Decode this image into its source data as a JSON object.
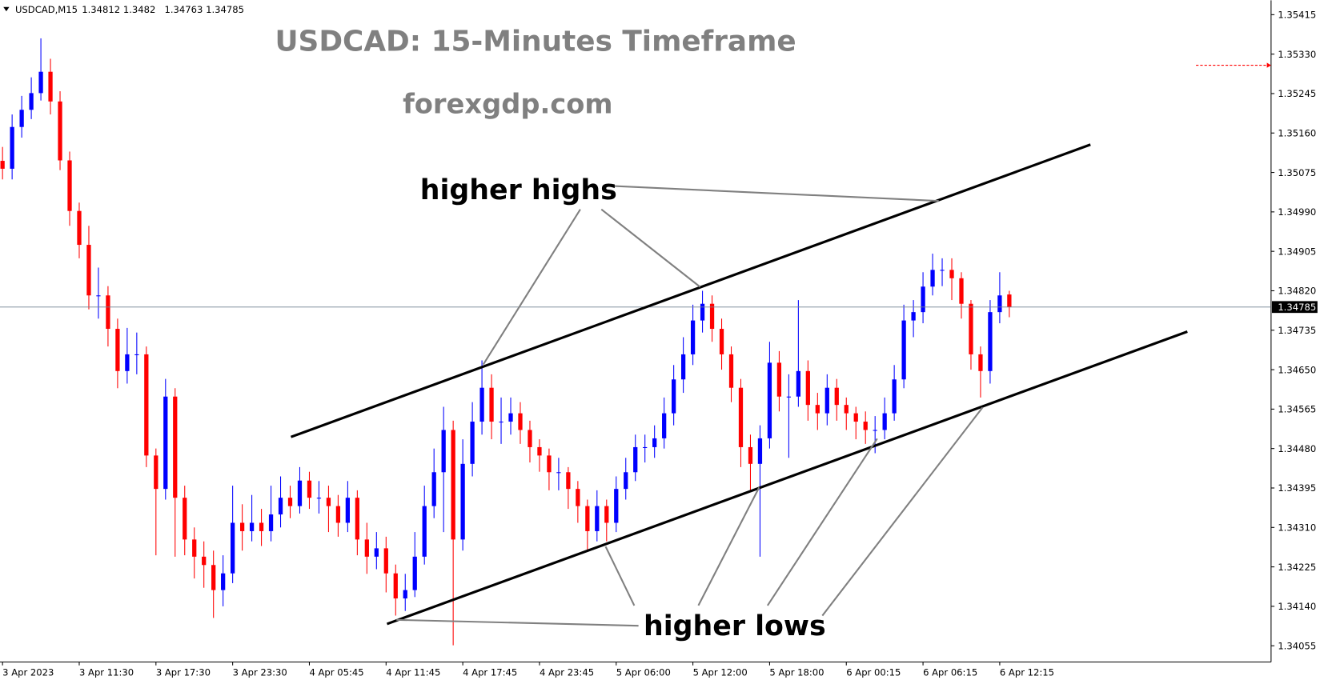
{
  "chart_data": {
    "type": "candlestick",
    "symbol": "USDCAD,M15",
    "title": "USDCAD: 15-Minutes Timeframe",
    "subtitle": "forexgdp.com",
    "annotations": [
      "higher highs",
      "higher lows"
    ],
    "up_color": "#0000ff",
    "down_color": "#ff0000",
    "candles": [
      [
        1.351,
        1.3513,
        1.3506,
        1.35083
      ],
      [
        1.35083,
        1.352,
        1.3506,
        1.35173
      ],
      [
        1.35173,
        1.3524,
        1.3515,
        1.3521
      ],
      [
        1.3521,
        1.3528,
        1.3519,
        1.35246
      ],
      [
        1.35246,
        1.35364,
        1.3523,
        1.35292
      ],
      [
        1.35292,
        1.3532,
        1.352,
        1.35228
      ],
      [
        1.35228,
        1.3525,
        1.3508,
        1.35101
      ],
      [
        1.35101,
        1.3512,
        1.3496,
        1.34992
      ],
      [
        1.34992,
        1.3501,
        1.3489,
        1.34919
      ],
      [
        1.34919,
        1.3496,
        1.3478,
        1.3481
      ],
      [
        1.3481,
        1.3487,
        1.3476,
        1.3481
      ],
      [
        1.3481,
        1.3483,
        1.347,
        1.34738
      ],
      [
        1.34738,
        1.3476,
        1.3461,
        1.34647
      ],
      [
        1.34647,
        1.3474,
        1.3462,
        1.34683
      ],
      [
        1.34683,
        1.3473,
        1.3464,
        1.34683
      ],
      [
        1.34683,
        1.347,
        1.3444,
        1.34465
      ],
      [
        1.34465,
        1.3448,
        1.3425,
        1.34393
      ],
      [
        1.34393,
        1.3463,
        1.3437,
        1.34592
      ],
      [
        1.34592,
        1.3461,
        1.34247,
        1.34374
      ],
      [
        1.34374,
        1.344,
        1.3425,
        1.34284
      ],
      [
        1.34284,
        1.3431,
        1.342,
        1.34247
      ],
      [
        1.34247,
        1.3428,
        1.3418,
        1.34229
      ],
      [
        1.34229,
        1.3426,
        1.34115,
        1.34175
      ],
      [
        1.34175,
        1.3425,
        1.3414,
        1.34211
      ],
      [
        1.34211,
        1.344,
        1.3419,
        1.3432
      ],
      [
        1.3432,
        1.3436,
        1.3426,
        1.34302
      ],
      [
        1.34302,
        1.3438,
        1.3428,
        1.3432
      ],
      [
        1.3432,
        1.3435,
        1.3427,
        1.34302
      ],
      [
        1.34302,
        1.344,
        1.3428,
        1.34338
      ],
      [
        1.34338,
        1.3442,
        1.3431,
        1.34374
      ],
      [
        1.34374,
        1.344,
        1.3433,
        1.34356
      ],
      [
        1.34356,
        1.3444,
        1.3434,
        1.34411
      ],
      [
        1.34411,
        1.3443,
        1.3435,
        1.34374
      ],
      [
        1.34374,
        1.3441,
        1.3434,
        1.34374
      ],
      [
        1.34374,
        1.344,
        1.343,
        1.34356
      ],
      [
        1.34356,
        1.3438,
        1.3429,
        1.3432
      ],
      [
        1.3432,
        1.3441,
        1.343,
        1.34374
      ],
      [
        1.34374,
        1.3439,
        1.3425,
        1.34284
      ],
      [
        1.34284,
        1.3432,
        1.3421,
        1.34247
      ],
      [
        1.34247,
        1.343,
        1.3422,
        1.34265
      ],
      [
        1.34265,
        1.3429,
        1.3417,
        1.34211
      ],
      [
        1.34211,
        1.3423,
        1.3412,
        1.34157
      ],
      [
        1.34157,
        1.3421,
        1.3413,
        1.34175
      ],
      [
        1.34175,
        1.343,
        1.3416,
        1.34247
      ],
      [
        1.34247,
        1.344,
        1.3423,
        1.34356
      ],
      [
        1.34356,
        1.3448,
        1.3433,
        1.34429
      ],
      [
        1.34429,
        1.3457,
        1.343,
        1.3452
      ],
      [
        1.3452,
        1.3454,
        1.34056,
        1.34284
      ],
      [
        1.34284,
        1.345,
        1.3426,
        1.34447
      ],
      [
        1.34447,
        1.3458,
        1.3442,
        1.34538
      ],
      [
        1.34538,
        1.3467,
        1.3451,
        1.34611
      ],
      [
        1.34611,
        1.3464,
        1.345,
        1.34538
      ],
      [
        1.34538,
        1.3459,
        1.3449,
        1.34538
      ],
      [
        1.34538,
        1.3459,
        1.3451,
        1.34556
      ],
      [
        1.34556,
        1.3458,
        1.3449,
        1.3452
      ],
      [
        1.3452,
        1.3454,
        1.3445,
        1.34483
      ],
      [
        1.34483,
        1.345,
        1.3443,
        1.34465
      ],
      [
        1.34465,
        1.3448,
        1.3439,
        1.34429
      ],
      [
        1.34429,
        1.3446,
        1.3439,
        1.34429
      ],
      [
        1.34429,
        1.3444,
        1.3435,
        1.34393
      ],
      [
        1.34393,
        1.3441,
        1.3432,
        1.34356
      ],
      [
        1.34356,
        1.3437,
        1.3426,
        1.34302
      ],
      [
        1.34302,
        1.3439,
        1.3428,
        1.34356
      ],
      [
        1.34356,
        1.3437,
        1.3428,
        1.3432
      ],
      [
        1.3432,
        1.3442,
        1.343,
        1.34393
      ],
      [
        1.34393,
        1.3446,
        1.3437,
        1.34429
      ],
      [
        1.34429,
        1.3451,
        1.3441,
        1.34483
      ],
      [
        1.34483,
        1.3451,
        1.3445,
        1.34483
      ],
      [
        1.34483,
        1.3453,
        1.3446,
        1.34502
      ],
      [
        1.34502,
        1.3459,
        1.3448,
        1.34556
      ],
      [
        1.34556,
        1.3466,
        1.3453,
        1.34629
      ],
      [
        1.34629,
        1.3472,
        1.346,
        1.34683
      ],
      [
        1.34683,
        1.3479,
        1.3466,
        1.34756
      ],
      [
        1.34756,
        1.3482,
        1.3473,
        1.34792
      ],
      [
        1.34792,
        1.3481,
        1.3471,
        1.34738
      ],
      [
        1.34738,
        1.3476,
        1.3465,
        1.34683
      ],
      [
        1.34683,
        1.347,
        1.3458,
        1.34611
      ],
      [
        1.34611,
        1.3463,
        1.3444,
        1.34483
      ],
      [
        1.34483,
        1.3451,
        1.3439,
        1.34447
      ],
      [
        1.34447,
        1.3453,
        1.34247,
        1.34502
      ],
      [
        1.34502,
        1.3471,
        1.3448,
        1.34665
      ],
      [
        1.34665,
        1.3469,
        1.3456,
        1.34592
      ],
      [
        1.34592,
        1.3464,
        1.3446,
        1.34592
      ],
      [
        1.34592,
        1.348,
        1.3457,
        1.34647
      ],
      [
        1.34647,
        1.3467,
        1.3454,
        1.34574
      ],
      [
        1.34574,
        1.346,
        1.3452,
        1.34556
      ],
      [
        1.34556,
        1.3464,
        1.3453,
        1.34611
      ],
      [
        1.34611,
        1.3463,
        1.3454,
        1.34574
      ],
      [
        1.34574,
        1.3459,
        1.3452,
        1.34556
      ],
      [
        1.34556,
        1.3457,
        1.345,
        1.34538
      ],
      [
        1.34538,
        1.3456,
        1.3449,
        1.3452
      ],
      [
        1.3452,
        1.3455,
        1.3447,
        1.3452
      ],
      [
        1.3452,
        1.3459,
        1.345,
        1.34556
      ],
      [
        1.34556,
        1.3466,
        1.3454,
        1.34629
      ],
      [
        1.34629,
        1.3479,
        1.3461,
        1.34756
      ],
      [
        1.34756,
        1.348,
        1.3472,
        1.34774
      ],
      [
        1.34774,
        1.3486,
        1.3475,
        1.34829
      ],
      [
        1.34829,
        1.349,
        1.3481,
        1.34865
      ],
      [
        1.34865,
        1.3489,
        1.3483,
        1.34865
      ],
      [
        1.34865,
        1.3489,
        1.348,
        1.34847
      ],
      [
        1.34847,
        1.3486,
        1.3476,
        1.34792
      ],
      [
        1.34792,
        1.348,
        1.3465,
        1.34683
      ],
      [
        1.34683,
        1.347,
        1.3459,
        1.34647
      ],
      [
        1.34647,
        1.348,
        1.3462,
        1.34774
      ],
      [
        1.34774,
        1.3486,
        1.3475,
        1.3481
      ],
      [
        1.34812,
        1.3482,
        1.34763,
        1.34785
      ]
    ],
    "trendlines": [
      {
        "x": [
          30.08,
          113.46
        ],
        "y": [
          1.34505,
          1.35135
        ]
      },
      {
        "x": [
          40.1,
          123.57
        ],
        "y": [
          1.34102,
          1.34732
        ]
      }
    ],
    "marker_level": 1.35306,
    "xlim": [
      -0.264,
      132.3
    ],
    "xticks": [
      {
        "value": 0,
        "label": "3 Apr 2023"
      },
      {
        "value": 8,
        "label": "3 Apr 11:30"
      },
      {
        "value": 16,
        "label": "3 Apr 17:30"
      },
      {
        "value": 24,
        "label": "3 Apr 23:30"
      },
      {
        "value": 32,
        "label": "4 Apr 05:45"
      },
      {
        "value": 40,
        "label": "4 Apr 11:45"
      },
      {
        "value": 48,
        "label": "4 Apr 17:45"
      },
      {
        "value": 56,
        "label": "4 Apr 23:45"
      },
      {
        "value": 64,
        "label": "5 Apr 06:00"
      },
      {
        "value": 72,
        "label": "5 Apr 12:00"
      },
      {
        "value": 80,
        "label": "5 Apr 18:00"
      },
      {
        "value": 88,
        "label": "6 Apr 00:15"
      },
      {
        "value": 96,
        "label": "6 Apr 06:15"
      },
      {
        "value": 104,
        "label": "6 Apr 12:15"
      }
    ],
    "ylim": [
      1.3402,
      1.35446
    ],
    "yticks": [
      1.35415,
      {
        "value": 1.3533,
        "label": "1.35330"
      },
      1.35245,
      {
        "value": 1.3516,
        "label": "1.35160"
      },
      1.35075,
      {
        "value": 1.3499,
        "label": "1.34990"
      },
      1.34905,
      {
        "value": 1.3482,
        "label": "1.34820"
      },
      1.34735,
      {
        "value": 1.3465,
        "label": "1.34650"
      },
      1.34565,
      {
        "value": 1.3448,
        "label": "1.34480"
      },
      1.34395,
      {
        "value": 1.3431,
        "label": "1.34310"
      },
      1.34225,
      {
        "value": 1.3414,
        "label": "1.34140"
      },
      1.34055
    ]
  }
}
